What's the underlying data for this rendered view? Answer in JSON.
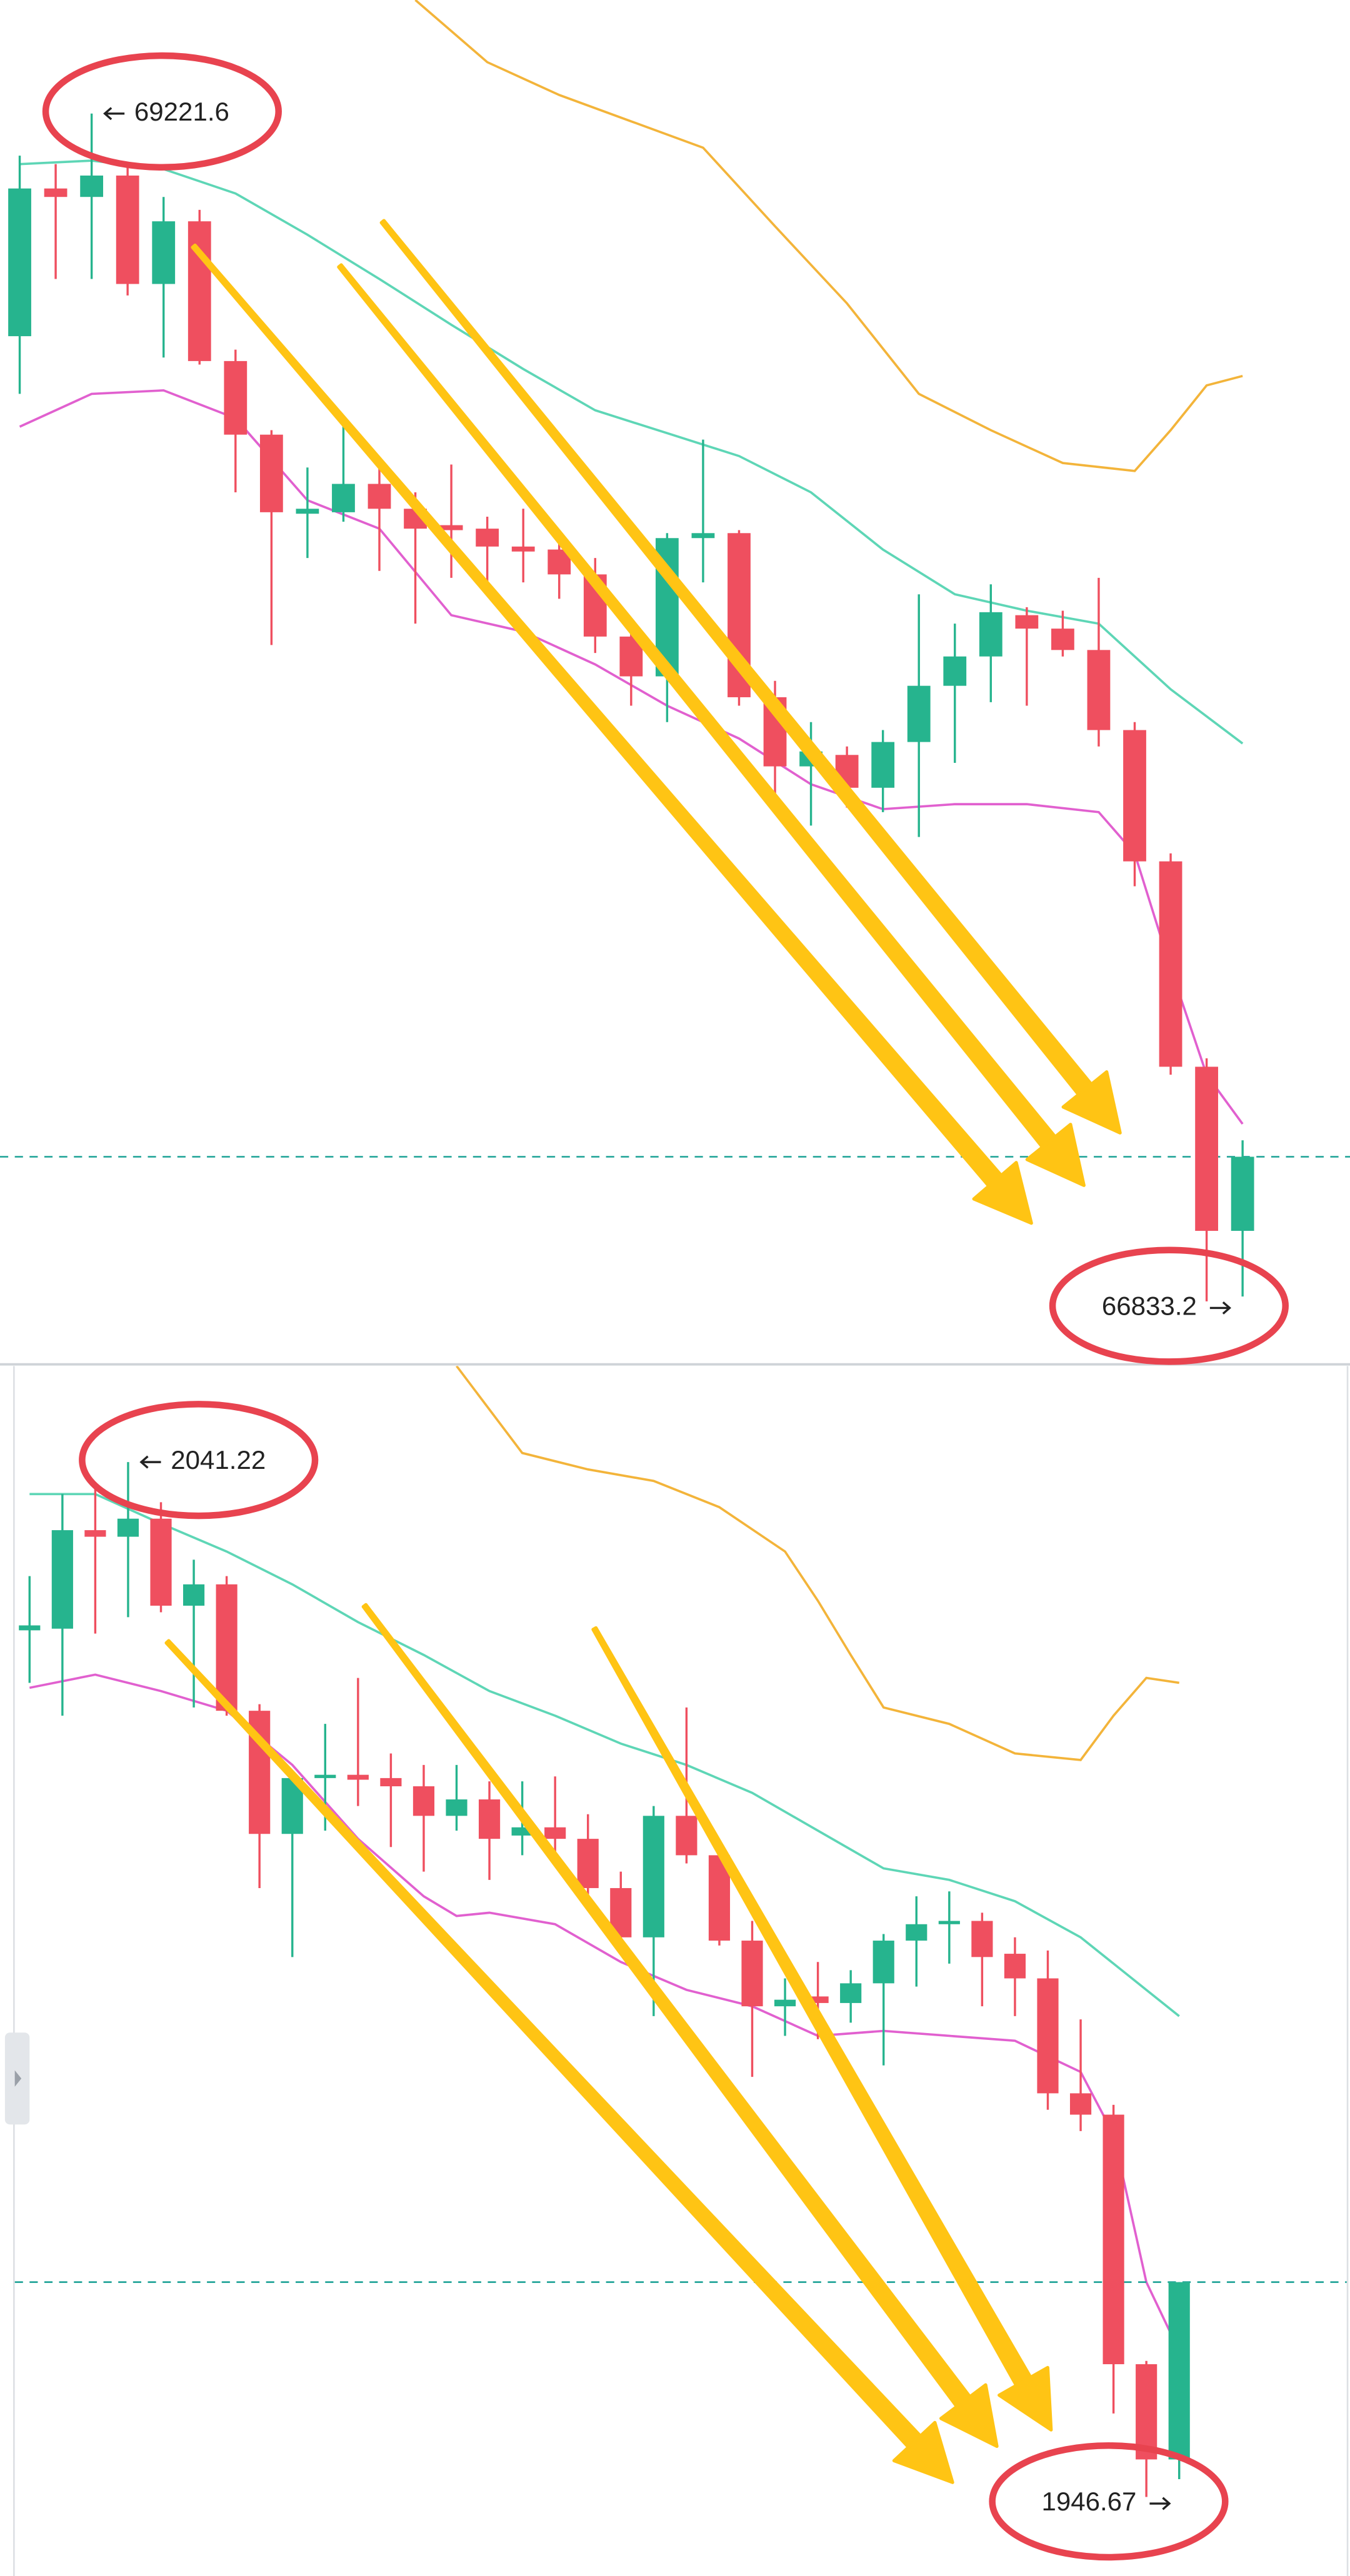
{
  "chart_data": [
    {
      "type": "candlestick",
      "up_color": "#26b48e",
      "down_color": "#ef4f5f",
      "ylim": [
        66700,
        69450
      ],
      "open": [
        68774,
        69071,
        69054,
        69097,
        68879,
        69005,
        68724,
        68576,
        68417,
        68420,
        68477,
        68427,
        68394,
        68387,
        68351,
        68345,
        68295,
        68170,
        68090,
        68368,
        68378,
        68048,
        67909,
        67932,
        67866,
        67958,
        68071,
        68130,
        68213,
        68186,
        68143,
        67982,
        67718,
        67305,
        66975
      ],
      "high": [
        69137,
        69120,
        69221.6,
        69120,
        69054,
        69028,
        68747,
        68585,
        68510,
        68599,
        68516,
        68460,
        68516,
        68411,
        68427,
        68384,
        68328,
        68203,
        68378,
        68566,
        68384,
        68081,
        67998,
        67949,
        67982,
        68255,
        68196,
        68275,
        68229,
        68222,
        68288,
        67998,
        67734,
        67322,
        67157
      ],
      "low": [
        68658,
        68889,
        68889,
        68856,
        68731,
        68717,
        68460,
        68153,
        68328,
        68401,
        68302,
        68196,
        68288,
        68279,
        68279,
        68246,
        68137,
        68031,
        67998,
        68279,
        68031,
        67850,
        67790,
        67826,
        67817,
        67767,
        67916,
        68038,
        68031,
        68130,
        67949,
        67668,
        67289,
        66833.2,
        66843
      ],
      "close": [
        69071,
        69054,
        69097,
        68879,
        69005,
        68724,
        68576,
        68420,
        68427,
        68477,
        68427,
        68387,
        68384,
        68351,
        68341,
        68295,
        68170,
        68090,
        68368,
        68378,
        68048,
        67909,
        67939,
        67866,
        67958,
        68071,
        68130,
        68219,
        68186,
        68143,
        67982,
        67718,
        67305,
        66975,
        67124
      ],
      "bands": [
        {
          "color": "#f3b43a",
          "x": [
            11,
            13,
            15,
            17,
            19,
            21,
            23,
            25,
            27,
            29,
            31,
            32,
            33,
            34
          ],
          "values": [
            69450,
            69325,
            69259,
            69206,
            69153,
            68995,
            68840,
            68658,
            68585,
            68519,
            68503,
            68585,
            68675,
            68694
          ]
        },
        {
          "color": "#5ed6b6",
          "x": [
            0,
            2,
            4,
            6,
            8,
            10,
            12,
            14,
            16,
            18,
            20,
            22,
            24,
            26,
            28,
            30,
            32,
            34
          ],
          "values": [
            69120,
            69127,
            69110,
            69061,
            68978,
            68889,
            68797,
            68708,
            68625,
            68579,
            68533,
            68460,
            68345,
            68255,
            68222,
            68196,
            68064,
            67955
          ]
        },
        {
          "color": "#e160cf",
          "x": [
            0,
            2,
            4,
            6,
            8,
            10,
            12,
            14,
            16,
            18,
            20,
            22,
            24,
            26,
            28,
            30,
            31,
            32,
            33,
            34
          ],
          "values": [
            68592,
            68658,
            68665,
            68609,
            68444,
            68387,
            68213,
            68180,
            68114,
            68031,
            67965,
            67873,
            67823,
            67833,
            67833,
            67817,
            67734,
            67503,
            67289,
            67190
          ]
        }
      ],
      "price_line": 67124,
      "price_line_color": "#26a69a"
    },
    {
      "type": "candlestick",
      "up_color": "#26b48e",
      "down_color": "#ef4f5f",
      "ylim": [
        1939,
        2050
      ],
      "open": [
        2025.85,
        2026,
        2035,
        2034.4,
        2036.05,
        2028.1,
        2030.05,
        2018.5,
        2007.25,
        2012.35,
        2012.65,
        2012.35,
        2011.6,
        2008.9,
        2010.4,
        2007.1,
        2007.85,
        2006.8,
        2002.3,
        1997.8,
        2008.9,
        2005.3,
        1997.5,
        1991.5,
        1992.4,
        1991.8,
        1993.6,
        1997.5,
        1999,
        1999.3,
        1996.3,
        1994.05,
        1983.55,
        1981.6,
        1958.8,
        1950.1
      ],
      "high": [
        2030.8,
        2038.3,
        2039.05,
        2041.22,
        2037.55,
        2032.3,
        2030.8,
        2019.1,
        2012.8,
        2017.3,
        2021.5,
        2014.6,
        2013.55,
        2013.55,
        2012.05,
        2012.05,
        2012.5,
        2009.05,
        2003.8,
        2009.8,
        2018.8,
        2006.05,
        1999.3,
        1994.05,
        1995.55,
        1994.8,
        1998.1,
        2001.55,
        2002,
        2000.05,
        1997.8,
        1996.6,
        1990.3,
        1982.5,
        1959.1,
        1966.3
      ],
      "low": [
        2021.05,
        2018.05,
        2025.55,
        2027.05,
        2027.5,
        2018.8,
        2018.05,
        2002.3,
        1996,
        2007.55,
        2009.8,
        2006.05,
        2003.8,
        2007.55,
        2003.05,
        2005.3,
        2004.55,
        2000.8,
        1996.3,
        1990.6,
        2004.55,
        1997.05,
        1985.05,
        1988.8,
        1988.5,
        1990,
        1986.1,
        1993.3,
        1995.4,
        1991.5,
        1990.6,
        1982.05,
        1980.1,
        1954.3,
        1946.67,
        1948.3
      ],
      "close": [
        2026.3,
        2035,
        2034.4,
        2036.05,
        2028.1,
        2030.05,
        2018.5,
        2007.25,
        2012.35,
        2012.65,
        2012.2,
        2011.6,
        2008.9,
        2010.4,
        2006.8,
        2007.85,
        2006.8,
        2002.3,
        1997.8,
        2008.9,
        2005.3,
        1997.5,
        1991.5,
        1992.1,
        1991.8,
        1993.6,
        1997.5,
        1999,
        1999.3,
        1996,
        1994.05,
        1983.55,
        1981.6,
        1958.8,
        1950.1,
        1966.3
      ],
      "bands": [
        {
          "color": "#f3b43a",
          "x": [
            13,
            15,
            17,
            19,
            21,
            23,
            24,
            25,
            26,
            28,
            30,
            32,
            33,
            34,
            35
          ],
          "values": [
            2050,
            2042.05,
            2040.55,
            2039.5,
            2037.1,
            2033.05,
            2028.55,
            2023.6,
            2018.8,
            2017.3,
            2014.6,
            2014,
            2018.05,
            2021.5,
            2021.05
          ]
        },
        {
          "color": "#5ed6b6",
          "x": [
            0,
            2,
            4,
            6,
            8,
            10,
            12,
            14,
            16,
            18,
            20,
            22,
            24,
            26,
            28,
            30,
            32,
            34,
            35
          ],
          "values": [
            2038.3,
            2038.3,
            2035.6,
            2033.05,
            2030.05,
            2026.6,
            2023.6,
            2020.3,
            2018.05,
            2015.5,
            2013.55,
            2011,
            2007.55,
            2004.1,
            2003.05,
            2001.1,
            1997.8,
            1993,
            1990.6
          ]
        },
        {
          "color": "#e160cf",
          "x": [
            0,
            2,
            4,
            6,
            8,
            10,
            12,
            13,
            14,
            16,
            18,
            20,
            22,
            24,
            26,
            28,
            30,
            32,
            33,
            34,
            35
          ],
          "values": [
            2020.6,
            2021.8,
            2020.3,
            2018.5,
            2013.55,
            2006.8,
            2001.55,
            1999.75,
            2000.05,
            1999,
            1995.55,
            1993,
            1991.5,
            1988.8,
            1989.25,
            1988.8,
            1988.35,
            1985.5,
            1979.8,
            1966.3,
            1960
          ]
        }
      ],
      "price_line": 1966.3,
      "price_line_color": "#26a69a"
    }
  ]
}
